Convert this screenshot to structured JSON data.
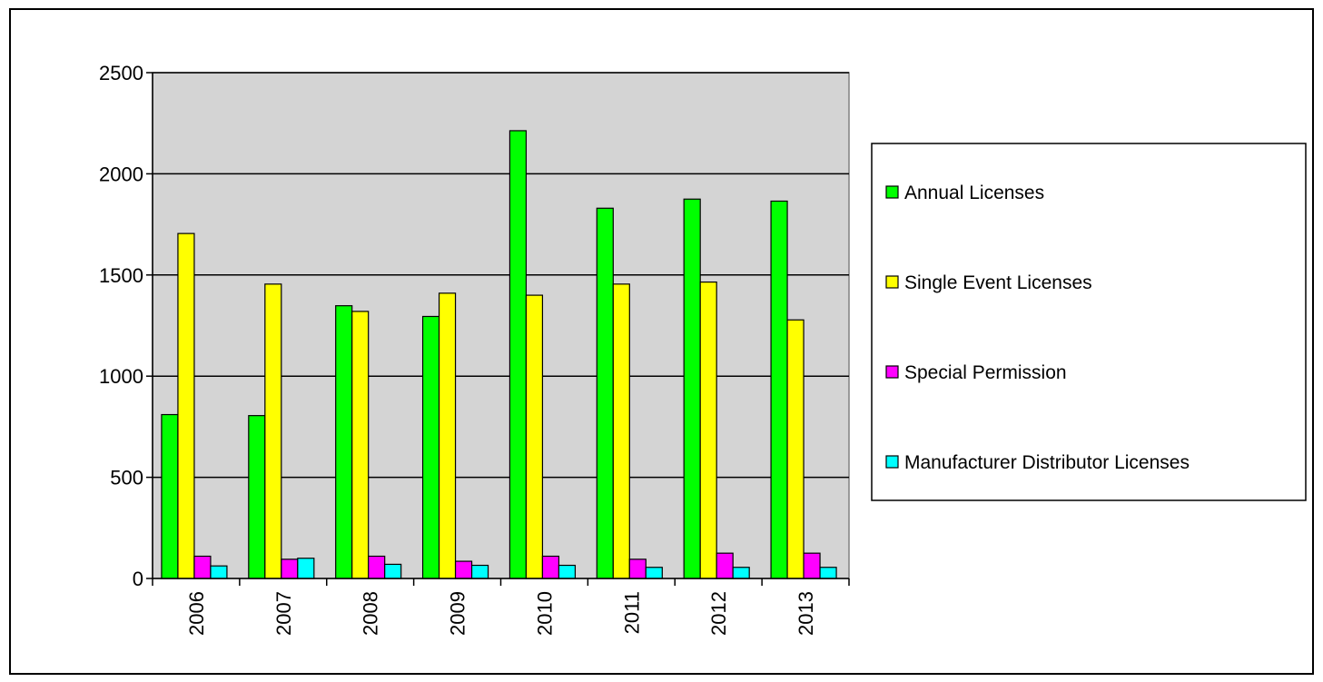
{
  "chart_data": {
    "type": "bar",
    "categories": [
      "2006",
      "2007",
      "2008",
      "2009",
      "2010",
      "2011",
      "2012",
      "2013"
    ],
    "series": [
      {
        "name": "Annual Licenses",
        "color": "#00FF00",
        "values": [
          810,
          805,
          1348,
          1295,
          2213,
          1830,
          1875,
          1865
        ]
      },
      {
        "name": "Single Event Licenses",
        "color": "#FFFF00",
        "values": [
          1705,
          1455,
          1320,
          1410,
          1400,
          1455,
          1465,
          1278
        ]
      },
      {
        "name": "Special Permission",
        "color": "#FF00FF",
        "values": [
          110,
          95,
          110,
          85,
          110,
          95,
          125,
          125
        ]
      },
      {
        "name": "Manufacturer Distributor Licenses",
        "color": "#00FFFF",
        "values": [
          62,
          100,
          70,
          65,
          65,
          55,
          55,
          55
        ]
      }
    ],
    "ylim": [
      0,
      2500
    ],
    "yticks": [
      "0",
      "500",
      "1000",
      "1500",
      "2000",
      "2500"
    ],
    "grid": true,
    "legend": "right",
    "plot_background": "#D4D4D4"
  }
}
